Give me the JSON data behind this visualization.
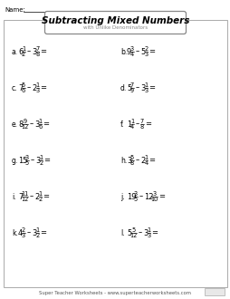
{
  "title": "Subtracting Mixed Numbers",
  "subtitle": "with Unlike Denominators",
  "name_label": "Name:",
  "footer": "Super Teacher Worksheets - www.superteacherworksheets.com",
  "bg_color": "#ffffff",
  "problems": [
    {
      "label": "a.",
      "w1": "6",
      "n1": "1",
      "d1": "2",
      "w2": "3",
      "n2": "7",
      "d2": "8"
    },
    {
      "label": "b.",
      "w1": "9",
      "n1": "3",
      "d1": "4",
      "w2": "5",
      "n2": "2",
      "d2": "3"
    },
    {
      "label": "c.",
      "w1": "7",
      "n1": "5",
      "d1": "6",
      "w2": "2",
      "n2": "1",
      "d2": "3"
    },
    {
      "label": "d.",
      "w1": "5",
      "n1": "7",
      "d1": "9",
      "w2": "3",
      "n2": "1",
      "d2": "3"
    },
    {
      "label": "e.",
      "w1": "8",
      "n1": "9",
      "d1": "12",
      "w2": "3",
      "n2": "1",
      "d2": "6"
    },
    {
      "label": "f.",
      "w1": "1",
      "n1": "1",
      "d1": "4",
      "w2": "",
      "n2": "7",
      "d2": "8"
    },
    {
      "label": "g.",
      "w1": "15",
      "n1": "3",
      "d1": "5",
      "w2": "3",
      "n2": "1",
      "d2": "2"
    },
    {
      "label": "h.",
      "w1": "3",
      "n1": "5",
      "d1": "8",
      "w2": "2",
      "n2": "1",
      "d2": "4"
    },
    {
      "label": "i.",
      "w1": "7",
      "n1": "11",
      "d1": "12",
      "w2": "2",
      "n2": "1",
      "d2": "2"
    },
    {
      "label": "j.",
      "w1": "19",
      "n1": "3",
      "d1": "5",
      "w2": "12",
      "n2": "3",
      "d2": "10"
    },
    {
      "label": "k.",
      "w1": "4",
      "n1": "2",
      "d1": "3",
      "w2": "3",
      "n2": "1",
      "d2": "2"
    },
    {
      "label": "l.",
      "w1": "5",
      "n1": "5",
      "d1": "12",
      "w2": "3",
      "n2": "1",
      "d2": "3"
    }
  ]
}
